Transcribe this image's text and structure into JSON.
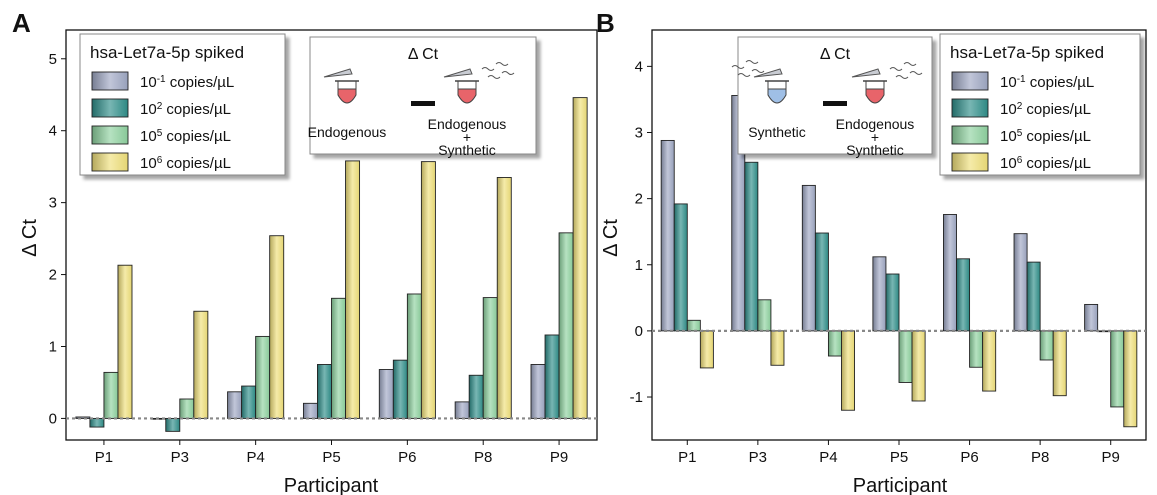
{
  "colors": {
    "series": [
      "#9fa8c4",
      "#2f8f8a",
      "#8fd3a0",
      "#f0e07a"
    ],
    "tube_endogenous": "#e8646a",
    "tube_synthetic": "#9fbfe6",
    "zero_line": "#888888"
  },
  "chart_data": [
    {
      "type": "bar",
      "panel_label": "A",
      "categories": [
        "P1",
        "P3",
        "P4",
        "P5",
        "P6",
        "P8",
        "P9"
      ],
      "xlabel": "Participant",
      "ylabel": "Δ Ct",
      "ylim": [
        -0.3,
        5.4
      ],
      "yticks": [
        0,
        1,
        2,
        3,
        4,
        5
      ],
      "ytick_labels": [
        "0",
        "1",
        "2",
        "3",
        "4",
        "5"
      ],
      "legend": {
        "title": "hsa-Let7a-5p spiked",
        "placement": "top-left",
        "entries": [
          {
            "base": "10",
            "exp": "-1",
            "unit": " copies/µL"
          },
          {
            "base": "10",
            "exp": "2",
            "unit": " copies/µL"
          },
          {
            "base": "10",
            "exp": "5",
            "unit": " copies/µL"
          },
          {
            "base": "10",
            "exp": "6",
            "unit": " copies/µL"
          }
        ]
      },
      "inset": {
        "title": "Δ Ct",
        "left_label": "Endogenous",
        "right_label_lines": [
          "Endogenous",
          "+",
          "Synthetic"
        ],
        "left_tube": "endogenous",
        "right_tube": "endogenous"
      },
      "series": [
        {
          "values": [
            0.02,
            0.0,
            0.37,
            0.21,
            0.68,
            0.23,
            0.75
          ]
        },
        {
          "values": [
            -0.12,
            -0.18,
            0.45,
            0.75,
            0.81,
            0.6,
            1.16
          ]
        },
        {
          "values": [
            0.64,
            0.27,
            1.14,
            1.67,
            1.73,
            1.68,
            2.58
          ]
        },
        {
          "values": [
            2.13,
            1.49,
            2.54,
            3.58,
            3.57,
            3.35,
            4.46
          ]
        }
      ]
    },
    {
      "type": "bar",
      "panel_label": "B",
      "categories": [
        "P1",
        "P3",
        "P4",
        "P5",
        "P6",
        "P8",
        "P9"
      ],
      "xlabel": "Participant",
      "ylabel": "Δ Ct",
      "ylim": [
        -1.65,
        4.55
      ],
      "yticks": [
        -1,
        0,
        1,
        2,
        3,
        4
      ],
      "ytick_labels": [
        "-1",
        "0",
        "1",
        "2",
        "3",
        "4"
      ],
      "legend": {
        "title": "hsa-Let7a-5p spiked",
        "placement": "top-right",
        "entries": [
          {
            "base": "10",
            "exp": "-1",
            "unit": " copies/µL"
          },
          {
            "base": "10",
            "exp": "2",
            "unit": " copies/µL"
          },
          {
            "base": "10",
            "exp": "5",
            "unit": " copies/µL"
          },
          {
            "base": "10",
            "exp": "6",
            "unit": " copies/µL"
          }
        ]
      },
      "inset": {
        "title": "Δ Ct",
        "left_label": "Synthetic",
        "right_label_lines": [
          "Endogenous",
          "+",
          "Synthetic"
        ],
        "left_tube": "synthetic",
        "right_tube": "endogenous"
      },
      "series": [
        {
          "values": [
            2.88,
            3.56,
            2.2,
            1.12,
            1.76,
            1.47,
            0.4
          ]
        },
        {
          "values": [
            1.92,
            2.55,
            1.48,
            0.86,
            1.09,
            1.04,
            0.0
          ]
        },
        {
          "values": [
            0.16,
            0.47,
            -0.38,
            -0.78,
            -0.55,
            -0.44,
            -1.15
          ]
        },
        {
          "values": [
            -0.56,
            -0.52,
            -1.2,
            -1.06,
            -0.91,
            -0.98,
            -1.45
          ]
        }
      ]
    }
  ]
}
